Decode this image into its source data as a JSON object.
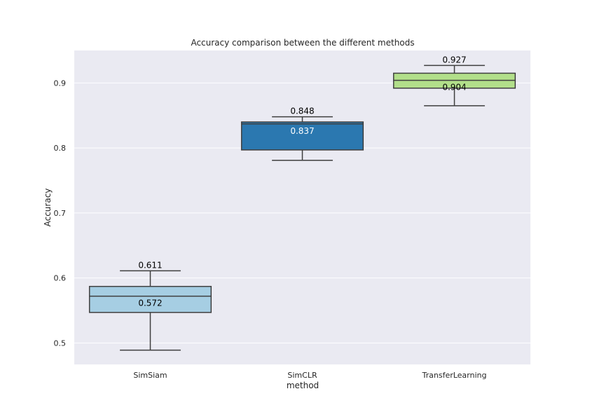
{
  "chart_data": {
    "type": "box",
    "title": "Accuracy comparison between the different methods",
    "xlabel": "method",
    "ylabel": "Accuracy",
    "ylim": [
      0.467,
      0.95
    ],
    "yticks": [
      "0.5",
      "0.6",
      "0.7",
      "0.8",
      "0.9"
    ],
    "grid": true,
    "categories": [
      "SimSiam",
      "SimCLR",
      "TransferLearning"
    ],
    "boxes": [
      {
        "category": "SimSiam",
        "whisker_low": 0.489,
        "q1": 0.547,
        "median": 0.572,
        "q3": 0.587,
        "whisker_high": 0.611,
        "color": "#a6cee3",
        "max_label": "0.611",
        "median_label": "0.572",
        "median_label_color": "#000000"
      },
      {
        "category": "SimCLR",
        "whisker_low": 0.781,
        "q1": 0.797,
        "median": 0.837,
        "q3": 0.84,
        "whisker_high": 0.848,
        "color": "#2b78b0",
        "max_label": "0.848",
        "median_label": "0.837",
        "median_label_color": "#ffffff"
      },
      {
        "category": "TransferLearning",
        "whisker_low": 0.865,
        "q1": 0.892,
        "median": 0.904,
        "q3": 0.915,
        "whisker_high": 0.927,
        "color": "#b2df8a",
        "max_label": "0.927",
        "median_label": "0.904",
        "median_label_color": "#000000"
      }
    ],
    "colors": {
      "plot_bg": "#eaeaf2",
      "grid": "#ffffff",
      "box_edge": "#3f3f3f"
    }
  }
}
